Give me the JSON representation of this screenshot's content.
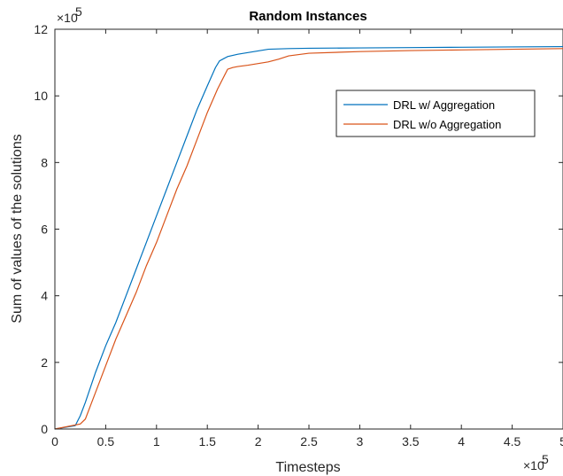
{
  "chart_data": {
    "type": "line",
    "title": "Random Instances",
    "xlabel": "Timesteps",
    "ylabel": "Sum of values of the solutions",
    "x_exponent_label": "×10",
    "x_exponent_power": "5",
    "y_exponent_label": "×10",
    "y_exponent_power": "5",
    "xlim": [
      0,
      5
    ],
    "ylim": [
      0,
      12
    ],
    "x_ticks": [
      0,
      0.5,
      1,
      1.5,
      2,
      2.5,
      3,
      3.5,
      4,
      4.5,
      5
    ],
    "x_tick_labels": [
      "0",
      "0.5",
      "1",
      "1.5",
      "2",
      "2.5",
      "3",
      "3.5",
      "4",
      "4.5",
      "5"
    ],
    "y_ticks": [
      0,
      2,
      4,
      6,
      8,
      10,
      12
    ],
    "y_tick_labels": [
      "0",
      "2",
      "4",
      "6",
      "8",
      "10",
      "12"
    ],
    "grid": false,
    "legend_position": "top-right",
    "series": [
      {
        "name": "DRL w/ Aggregation",
        "color": "#0072BD",
        "x": [
          0,
          0.2,
          0.25,
          0.3,
          0.4,
          0.5,
          0.6,
          0.7,
          0.8,
          0.9,
          1.0,
          1.1,
          1.2,
          1.3,
          1.4,
          1.5,
          1.58,
          1.62,
          1.7,
          1.8,
          1.9,
          2.0,
          2.1,
          2.3,
          2.5,
          3.0,
          3.5,
          4.0,
          4.5,
          5.0
        ],
        "y": [
          0,
          0.1,
          0.4,
          0.8,
          1.7,
          2.5,
          3.2,
          4.0,
          4.8,
          5.6,
          6.4,
          7.2,
          8.0,
          8.8,
          9.6,
          10.3,
          10.85,
          11.05,
          11.18,
          11.25,
          11.3,
          11.35,
          11.4,
          11.42,
          11.43,
          11.44,
          11.45,
          11.46,
          11.47,
          11.48
        ]
      },
      {
        "name": "DRL w/o Aggregation",
        "color": "#D95319",
        "x": [
          0,
          0.25,
          0.3,
          0.35,
          0.4,
          0.5,
          0.6,
          0.7,
          0.8,
          0.9,
          1.0,
          1.1,
          1.2,
          1.3,
          1.4,
          1.5,
          1.6,
          1.7,
          1.75,
          1.8,
          1.9,
          2.0,
          2.1,
          2.2,
          2.3,
          2.5,
          3.0,
          3.5,
          4.0,
          4.5,
          5.0
        ],
        "y": [
          0,
          0.15,
          0.3,
          0.7,
          1.1,
          1.9,
          2.7,
          3.4,
          4.1,
          4.9,
          5.6,
          6.4,
          7.2,
          7.9,
          8.7,
          9.5,
          10.2,
          10.8,
          10.85,
          10.88,
          10.92,
          10.97,
          11.02,
          11.1,
          11.2,
          11.28,
          11.33,
          11.36,
          11.38,
          11.4,
          11.42
        ]
      }
    ]
  }
}
